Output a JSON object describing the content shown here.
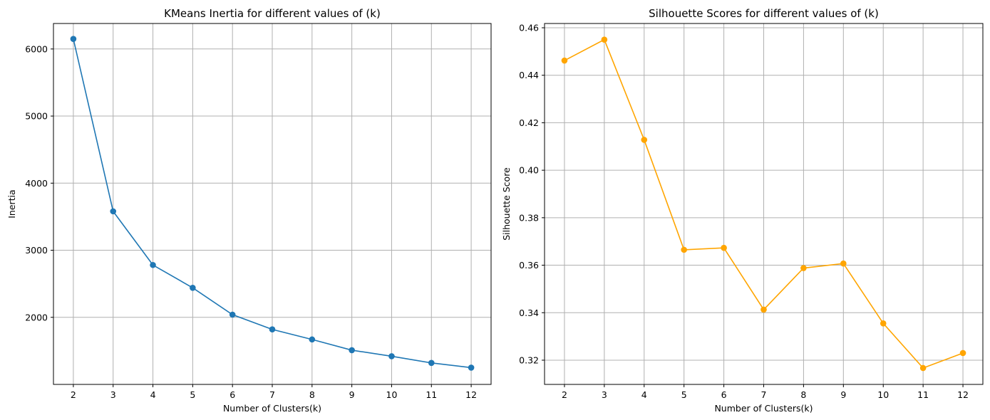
{
  "chart_data": [
    {
      "type": "line",
      "title": "KMeans Inertia for different values of (k)",
      "xlabel": "Number of Clusters(k)",
      "ylabel": "Inertia",
      "x": [
        2,
        3,
        4,
        5,
        6,
        7,
        8,
        9,
        10,
        11,
        12
      ],
      "series": [
        {
          "values": [
            6150,
            3580,
            2780,
            2440,
            2040,
            1820,
            1670,
            1510,
            1420,
            1320,
            1250
          ],
          "color": "#1f77b4",
          "marker": "circle"
        }
      ],
      "xlim": [
        1.5,
        12.5
      ],
      "ylim": [
        1000,
        6380
      ],
      "xticks": [
        "2",
        "3",
        "4",
        "5",
        "6",
        "7",
        "8",
        "9",
        "10",
        "11",
        "12"
      ],
      "yticks": [
        "2000",
        "3000",
        "4000",
        "5000",
        "6000"
      ],
      "grid": true
    },
    {
      "type": "line",
      "title": "Silhouette Scores for different values of (k)",
      "xlabel": "Number of Clusters(k)",
      "ylabel": "Silhouette Score",
      "x": [
        2,
        3,
        4,
        5,
        6,
        7,
        8,
        9,
        10,
        11,
        12
      ],
      "series": [
        {
          "values": [
            0.4462,
            0.455,
            0.4128,
            0.3665,
            0.3673,
            0.3413,
            0.3588,
            0.3607,
            0.3355,
            0.3167,
            0.323
          ],
          "color": "#ffa500",
          "marker": "circle"
        }
      ],
      "xlim": [
        1.5,
        12.5
      ],
      "ylim": [
        0.3098,
        0.4618
      ],
      "xticks": [
        "2",
        "3",
        "4",
        "5",
        "6",
        "7",
        "8",
        "9",
        "10",
        "11",
        "12"
      ],
      "yticks": [
        "0.32",
        "0.34",
        "0.36",
        "0.38",
        "0.40",
        "0.42",
        "0.44",
        "0.46"
      ],
      "grid": true
    }
  ]
}
